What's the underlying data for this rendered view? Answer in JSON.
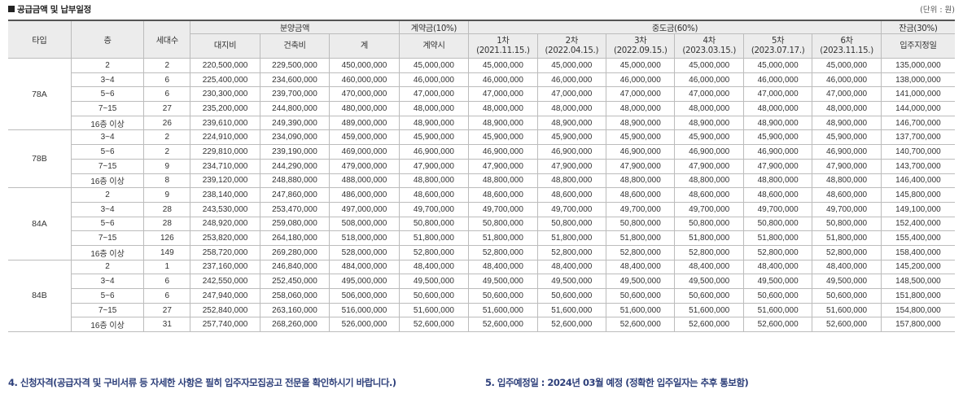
{
  "section_title": "공급금액 및 납부일정",
  "unit_label": "(단위 : 원)",
  "header": {
    "type": "타입",
    "floor": "층",
    "households": "세대수",
    "sale_price": "분양금액",
    "land": "대지비",
    "building": "건축비",
    "total": "계",
    "deposit_group": "계약금(10%)",
    "deposit": "계약시",
    "interim_group": "중도금(60%)",
    "interim": [
      {
        "label": "1차",
        "date": "(2021.11.15.)"
      },
      {
        "label": "2차",
        "date": "(2022.04.15.)"
      },
      {
        "label": "3차",
        "date": "(2022.09.15.)"
      },
      {
        "label": "4차",
        "date": "(2023.03.15.)"
      },
      {
        "label": "5차",
        "date": "(2023.07.17.)"
      },
      {
        "label": "6차",
        "date": "(2023.11.15.)"
      }
    ],
    "balance_group": "잔금(30%)",
    "balance": "입주지정일"
  },
  "groups": [
    {
      "type": "78A",
      "rows": [
        {
          "floor": "2",
          "households": "2",
          "land": "220,500,000",
          "building": "229,500,000",
          "total": "450,000,000",
          "deposit": "45,000,000",
          "interim": "45,000,000",
          "balance": "135,000,000"
        },
        {
          "floor": "3~4",
          "households": "6",
          "land": "225,400,000",
          "building": "234,600,000",
          "total": "460,000,000",
          "deposit": "46,000,000",
          "interim": "46,000,000",
          "balance": "138,000,000"
        },
        {
          "floor": "5~6",
          "households": "6",
          "land": "230,300,000",
          "building": "239,700,000",
          "total": "470,000,000",
          "deposit": "47,000,000",
          "interim": "47,000,000",
          "balance": "141,000,000"
        },
        {
          "floor": "7~15",
          "households": "27",
          "land": "235,200,000",
          "building": "244,800,000",
          "total": "480,000,000",
          "deposit": "48,000,000",
          "interim": "48,000,000",
          "balance": "144,000,000"
        },
        {
          "floor": "16층 이상",
          "households": "26",
          "land": "239,610,000",
          "building": "249,390,000",
          "total": "489,000,000",
          "deposit": "48,900,000",
          "interim": "48,900,000",
          "balance": "146,700,000"
        }
      ]
    },
    {
      "type": "78B",
      "rows": [
        {
          "floor": "3~4",
          "households": "2",
          "land": "224,910,000",
          "building": "234,090,000",
          "total": "459,000,000",
          "deposit": "45,900,000",
          "interim": "45,900,000",
          "balance": "137,700,000"
        },
        {
          "floor": "5~6",
          "households": "2",
          "land": "229,810,000",
          "building": "239,190,000",
          "total": "469,000,000",
          "deposit": "46,900,000",
          "interim": "46,900,000",
          "balance": "140,700,000"
        },
        {
          "floor": "7~15",
          "households": "9",
          "land": "234,710,000",
          "building": "244,290,000",
          "total": "479,000,000",
          "deposit": "47,900,000",
          "interim": "47,900,000",
          "balance": "143,700,000"
        },
        {
          "floor": "16층 이상",
          "households": "8",
          "land": "239,120,000",
          "building": "248,880,000",
          "total": "488,000,000",
          "deposit": "48,800,000",
          "interim": "48,800,000",
          "balance": "146,400,000"
        }
      ]
    },
    {
      "type": "84A",
      "rows": [
        {
          "floor": "2",
          "households": "9",
          "land": "238,140,000",
          "building": "247,860,000",
          "total": "486,000,000",
          "deposit": "48,600,000",
          "interim": "48,600,000",
          "balance": "145,800,000"
        },
        {
          "floor": "3~4",
          "households": "28",
          "land": "243,530,000",
          "building": "253,470,000",
          "total": "497,000,000",
          "deposit": "49,700,000",
          "interim": "49,700,000",
          "balance": "149,100,000"
        },
        {
          "floor": "5~6",
          "households": "28",
          "land": "248,920,000",
          "building": "259,080,000",
          "total": "508,000,000",
          "deposit": "50,800,000",
          "interim": "50,800,000",
          "balance": "152,400,000"
        },
        {
          "floor": "7~15",
          "households": "126",
          "land": "253,820,000",
          "building": "264,180,000",
          "total": "518,000,000",
          "deposit": "51,800,000",
          "interim": "51,800,000",
          "balance": "155,400,000"
        },
        {
          "floor": "16층 이상",
          "households": "149",
          "land": "258,720,000",
          "building": "269,280,000",
          "total": "528,000,000",
          "deposit": "52,800,000",
          "interim": "52,800,000",
          "balance": "158,400,000"
        }
      ]
    },
    {
      "type": "84B",
      "rows": [
        {
          "floor": "2",
          "households": "1",
          "land": "237,160,000",
          "building": "246,840,000",
          "total": "484,000,000",
          "deposit": "48,400,000",
          "interim": "48,400,000",
          "balance": "145,200,000"
        },
        {
          "floor": "3~4",
          "households": "6",
          "land": "242,550,000",
          "building": "252,450,000",
          "total": "495,000,000",
          "deposit": "49,500,000",
          "interim": "49,500,000",
          "balance": "148,500,000"
        },
        {
          "floor": "5~6",
          "households": "6",
          "land": "247,940,000",
          "building": "258,060,000",
          "total": "506,000,000",
          "deposit": "50,600,000",
          "interim": "50,600,000",
          "balance": "151,800,000"
        },
        {
          "floor": "7~15",
          "households": "27",
          "land": "252,840,000",
          "building": "263,160,000",
          "total": "516,000,000",
          "deposit": "51,600,000",
          "interim": "51,600,000",
          "balance": "154,800,000"
        },
        {
          "floor": "16층 이상",
          "households": "31",
          "land": "257,740,000",
          "building": "268,260,000",
          "total": "526,000,000",
          "deposit": "52,600,000",
          "interim": "52,600,000",
          "balance": "157,800,000"
        }
      ]
    }
  ],
  "notes": {
    "eligibility": "4. 신청자격(공급자격 및 구비서류 등 자세한 사항은 필히 입주자모집공고 전문을 확인하시기 바랍니다.)",
    "move_in": "5. 입주예정일 : 2024년 03월 예정 (정확한 입주일자는 추후 통보함)"
  }
}
